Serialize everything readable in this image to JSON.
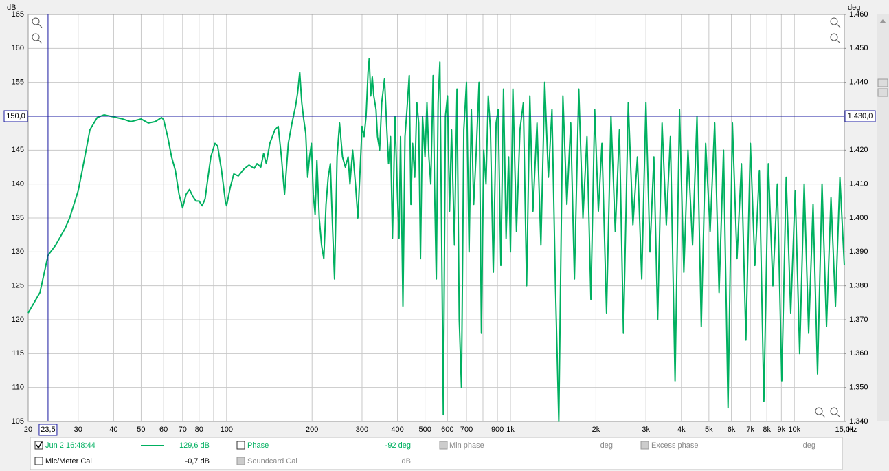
{
  "chart_data": {
    "type": "line",
    "y_unit": "dB",
    "y2_unit": "deg",
    "x_unit": "Hz",
    "xlim": [
      20,
      15000
    ],
    "ylim": [
      105,
      165
    ],
    "y2lim": [
      1.34,
      1.46
    ],
    "log_x": true,
    "grid": true,
    "yticks": [
      105,
      110,
      115,
      120,
      125,
      130,
      135,
      140,
      145,
      150,
      155,
      160,
      165
    ],
    "y2ticks": [
      {
        "value": 1.34,
        "label": "1.340"
      },
      {
        "value": 1.35,
        "label": "1.350"
      },
      {
        "value": 1.36,
        "label": "1.360"
      },
      {
        "value": 1.37,
        "label": "1.370"
      },
      {
        "value": 1.38,
        "label": "1.380"
      },
      {
        "value": 1.39,
        "label": "1.390"
      },
      {
        "value": 1.4,
        "label": "1.400"
      },
      {
        "value": 1.41,
        "label": "1.410"
      },
      {
        "value": 1.42,
        "label": "1.420"
      },
      {
        "value": 1.43,
        "label": "1.430"
      },
      {
        "value": 1.44,
        "label": "1.440"
      },
      {
        "value": 1.45,
        "label": "1.450"
      },
      {
        "value": 1.46,
        "label": "1.460"
      }
    ],
    "xticks": [
      20,
      30,
      40,
      50,
      60,
      70,
      80,
      100,
      200,
      300,
      400,
      500,
      600,
      700,
      900,
      {
        "value": 1000,
        "label": "1k"
      },
      {
        "value": 2000,
        "label": "2k"
      },
      {
        "value": 3000,
        "label": "3k"
      },
      {
        "value": 4000,
        "label": "4k"
      },
      {
        "value": 5000,
        "label": "5k"
      },
      {
        "value": 6000,
        "label": "6k"
      },
      {
        "value": 7000,
        "label": "7k"
      },
      {
        "value": 8000,
        "label": "8k"
      },
      {
        "value": 9000,
        "label": "9k"
      },
      {
        "value": 10000,
        "label": "10k"
      },
      {
        "value": 15000,
        "label": "15,0k"
      }
    ],
    "xminor": [
      90,
      800
    ],
    "cursor": {
      "x": 23.5,
      "x_label": "23,5",
      "y": 150,
      "y_label": "150,0",
      "y2_label": "1.430,0"
    },
    "x": [
      20,
      22,
      23.5,
      25,
      27,
      28,
      30,
      31,
      32,
      33,
      35,
      37,
      40,
      43,
      46,
      50,
      53,
      56,
      59,
      60,
      62,
      64,
      66,
      68,
      70,
      72,
      74,
      76,
      78,
      80,
      82,
      84,
      86,
      88,
      91,
      93,
      96,
      99,
      100,
      103,
      106,
      110,
      115,
      120,
      125,
      128,
      132,
      135,
      138,
      142,
      148,
      152,
      156,
      160,
      165,
      170,
      175,
      178,
      181,
      184,
      187,
      190,
      193,
      196,
      199,
      202,
      205,
      208,
      212,
      216,
      220,
      224,
      228,
      232,
      236,
      240,
      245,
      250,
      256,
      262,
      268,
      272,
      278,
      285,
      290,
      296,
      300,
      305,
      310,
      315,
      318,
      322,
      326,
      330,
      336,
      340,
      346,
      352,
      360,
      366,
      372,
      378,
      384,
      392,
      400,
      405,
      410,
      418,
      425,
      432,
      440,
      446,
      452,
      460,
      468,
      475,
      482,
      490,
      500,
      508,
      516,
      524,
      534,
      540,
      548,
      556,
      564,
      572,
      580,
      590,
      600,
      610,
      620,
      635,
      648,
      660,
      672,
      685,
      700,
      715,
      728,
      742,
      758,
      775,
      790,
      805,
      820,
      835,
      850,
      870,
      890,
      905,
      925,
      945,
      965,
      985,
      1000,
      1020,
      1050,
      1080,
      1110,
      1140,
      1170,
      1200,
      1240,
      1280,
      1320,
      1360,
      1400,
      1440,
      1480,
      1530,
      1580,
      1630,
      1680,
      1740,
      1800,
      1860,
      1920,
      1980,
      2040,
      2100,
      2180,
      2260,
      2340,
      2420,
      2500,
      2600,
      2700,
      2800,
      2900,
      3000,
      3100,
      3200,
      3300,
      3420,
      3540,
      3660,
      3800,
      3940,
      4080,
      4220,
      4380,
      4540,
      4700,
      4870,
      5050,
      5240,
      5430,
      5630,
      5840,
      6050,
      6280,
      6510,
      6750,
      7000,
      7260,
      7530,
      7810,
      8100,
      8400,
      8710,
      9030,
      9360,
      9710,
      10070,
      10440,
      10830,
      11230,
      11640,
      12070,
      12520,
      12980,
      13460,
      13960,
      14470,
      15000
    ],
    "series": [
      {
        "name": "Jun 2 16:48:44",
        "color": "#00b060",
        "values": [
          121,
          124,
          129.5,
          131,
          133.5,
          135,
          139,
          142,
          145,
          148,
          149.8,
          150.2,
          149.9,
          149.6,
          149.2,
          149.6,
          149,
          149.2,
          149.8,
          149.5,
          147,
          144,
          142,
          138.5,
          136.5,
          138.5,
          139.2,
          138.2,
          137.5,
          137.5,
          136.8,
          137.8,
          141,
          144,
          146,
          145.6,
          142,
          137.5,
          136.8,
          139.5,
          141.5,
          141.2,
          142.2,
          142.8,
          142.3,
          143,
          142.5,
          144.5,
          143,
          146,
          148,
          148.5,
          144,
          138.5,
          146,
          149,
          151.5,
          153.5,
          156.5,
          152,
          149.5,
          147.5,
          141,
          144,
          146,
          138.5,
          135.5,
          143.5,
          135,
          131,
          129,
          137,
          141,
          143,
          134,
          126,
          144,
          149,
          144,
          142.5,
          144,
          140,
          145,
          139.5,
          135,
          143,
          148.5,
          147,
          150,
          156.5,
          158.5,
          153,
          155.8,
          153,
          151,
          147,
          145,
          152,
          155.5,
          149,
          143,
          147,
          132,
          150,
          138,
          132,
          147,
          122,
          147,
          151,
          156,
          137,
          146,
          141,
          152,
          149,
          129,
          150,
          144,
          152,
          144,
          140,
          156,
          140,
          126,
          152,
          158,
          133,
          106,
          150,
          153,
          136,
          148,
          131,
          154,
          120,
          110,
          148,
          155,
          130,
          151,
          137,
          145,
          155,
          118,
          145,
          140,
          153,
          148,
          127,
          149,
          151,
          128,
          154,
          132,
          144,
          130,
          154,
          133,
          148,
          152,
          125,
          153,
          136,
          149,
          131,
          155,
          141,
          151,
          125,
          105,
          153,
          137,
          149,
          126,
          154,
          135,
          147,
          123,
          151,
          136,
          146,
          121,
          150,
          133,
          148,
          118,
          152,
          134,
          144,
          126,
          152,
          130,
          144,
          120,
          149,
          134,
          147,
          111,
          151,
          127,
          145,
          131,
          150,
          119,
          146,
          133,
          149,
          124,
          145,
          107,
          149,
          129,
          143,
          117,
          146,
          128,
          142,
          108,
          143,
          125,
          140,
          111,
          141,
          121,
          139,
          115,
          140,
          118,
          137,
          112,
          140,
          119,
          138,
          122,
          141,
          128
        ]
      }
    ],
    "panel": {
      "reading": "129,6 dB",
      "phase": "Phase",
      "phase_reading": "-92 deg",
      "min_phase": "Min phase",
      "min_phase_unit": "deg",
      "excess_phase": "Excess phase",
      "excess_phase_unit": "deg",
      "mic_cal": "Mic/Meter Cal",
      "mic_cal_reading": "-0,7 dB",
      "soundcard_cal": "Soundcard Cal",
      "soundcard_cal_unit": "dB"
    }
  }
}
